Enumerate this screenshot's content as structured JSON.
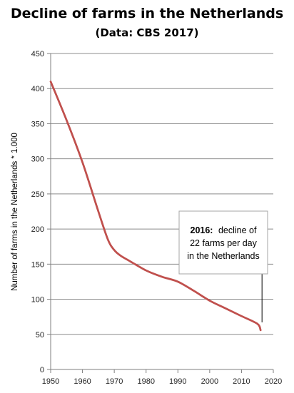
{
  "chart_data": {
    "type": "line",
    "title": "Decline of farms in the Netherlands",
    "subtitle": "(Data: CBS 2017)",
    "xlabel": "",
    "ylabel": "Number of farms in the Netherlands * 1.000",
    "xlim": [
      1950,
      2020
    ],
    "ylim": [
      0,
      450
    ],
    "x_ticks": [
      "1950",
      "1960",
      "1970",
      "1980",
      "1990",
      "2000",
      "2010",
      "2020"
    ],
    "y_ticks": [
      "0",
      "50",
      "100",
      "150",
      "200",
      "250",
      "300",
      "350",
      "400",
      "450"
    ],
    "grid": true,
    "line_color": "#c0504d",
    "series": [
      {
        "x": [
          1950,
          1955,
          1960,
          1965,
          1968,
          1970,
          1972,
          1975,
          1980,
          1985,
          1990,
          1995,
          2000,
          2005,
          2010,
          2015,
          2016
        ],
        "values": [
          410,
          355,
          295,
          225,
          185,
          170,
          162,
          154,
          141,
          132,
          125,
          112,
          98,
          87,
          76,
          65,
          56
        ]
      }
    ],
    "annotation": {
      "bold": "2016:",
      "line1": "decline of",
      "line2": "22 farms per day",
      "line3": "in the Netherlands",
      "x": 2016,
      "y": 63
    }
  }
}
